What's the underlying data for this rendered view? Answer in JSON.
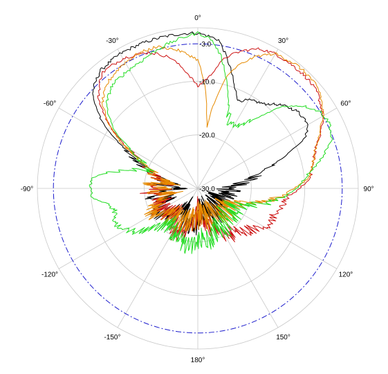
{
  "chart_data": {
    "type": "polar",
    "angle_ticks": [
      {
        "deg": 0,
        "label": "0°"
      },
      {
        "deg": 30,
        "label": "30°"
      },
      {
        "deg": 60,
        "label": "60°"
      },
      {
        "deg": 90,
        "label": "90°"
      },
      {
        "deg": 120,
        "label": "120°"
      },
      {
        "deg": 150,
        "label": "150°"
      },
      {
        "deg": 180,
        "label": "180°"
      },
      {
        "deg": -150,
        "label": "-150°"
      },
      {
        "deg": -120,
        "label": "-120°"
      },
      {
        "deg": -90,
        "label": "-90°"
      },
      {
        "deg": -60,
        "label": "-60°"
      },
      {
        "deg": -30,
        "label": "-30°"
      }
    ],
    "radial_ticks": [
      {
        "value": -3,
        "label": "-3.0"
      },
      {
        "value": -10,
        "label": "-10.0"
      },
      {
        "value": -20,
        "label": "-20.0"
      },
      {
        "value": -30,
        "label": "-30.0"
      }
    ],
    "radial_range": [
      -30,
      0
    ],
    "grid_circles": [
      0,
      -10,
      -20
    ],
    "reference_circle": {
      "value": -3,
      "color": "#1a1acc"
    },
    "series": [
      {
        "color": "#000000",
        "points": [
          [
            -180,
            -24
          ],
          [
            -165,
            -23
          ],
          [
            -150,
            -26
          ],
          [
            -140,
            -24
          ],
          [
            -130,
            -23
          ],
          [
            -120,
            -21
          ],
          [
            -110,
            -24
          ],
          [
            -100,
            -22
          ],
          [
            -95,
            -24
          ],
          [
            -90,
            -27
          ],
          [
            -85,
            -24
          ],
          [
            -80,
            -25
          ],
          [
            -70,
            -20
          ],
          [
            -62,
            -15
          ],
          [
            -55,
            -8
          ],
          [
            -48,
            -3.5
          ],
          [
            -40,
            -1.5
          ],
          [
            -30,
            -1
          ],
          [
            -20,
            -1
          ],
          [
            -10,
            -1
          ],
          [
            0,
            -1
          ],
          [
            8,
            -2
          ],
          [
            14,
            -6
          ],
          [
            20,
            -10
          ],
          [
            25,
            -12
          ],
          [
            30,
            -11
          ],
          [
            38,
            -10
          ],
          [
            45,
            -8
          ],
          [
            52,
            -6.5
          ],
          [
            60,
            -6
          ],
          [
            65,
            -8
          ],
          [
            70,
            -13
          ],
          [
            75,
            -17
          ],
          [
            80,
            -20
          ],
          [
            85,
            -23
          ],
          [
            90,
            -24
          ],
          [
            95,
            -24
          ],
          [
            100,
            -25
          ],
          [
            108,
            -26
          ],
          [
            115,
            -25
          ],
          [
            125,
            -26
          ],
          [
            135,
            -25
          ],
          [
            145,
            -24
          ],
          [
            155,
            -26
          ],
          [
            165,
            -25
          ],
          [
            175,
            -26
          ]
        ]
      },
      {
        "color": "#cc1111",
        "points": [
          [
            -180,
            -26
          ],
          [
            -165,
            -22
          ],
          [
            -150,
            -21
          ],
          [
            -140,
            -25
          ],
          [
            -130,
            -23
          ],
          [
            -120,
            -22
          ],
          [
            -110,
            -23
          ],
          [
            -100,
            -24
          ],
          [
            -95,
            -21
          ],
          [
            -90,
            -24
          ],
          [
            -85,
            -22
          ],
          [
            -80,
            -24
          ],
          [
            -70,
            -20
          ],
          [
            -62,
            -17
          ],
          [
            -55,
            -10
          ],
          [
            -48,
            -5
          ],
          [
            -40,
            -2
          ],
          [
            -30,
            -2
          ],
          [
            -20,
            -3
          ],
          [
            -12,
            -5
          ],
          [
            -6,
            -8
          ],
          [
            0,
            -11
          ],
          [
            6,
            -9
          ],
          [
            12,
            -5
          ],
          [
            18,
            -3
          ],
          [
            24,
            -1.5
          ],
          [
            30,
            -1
          ],
          [
            38,
            -1
          ],
          [
            45,
            -1
          ],
          [
            52,
            -1.5
          ],
          [
            60,
            -3
          ],
          [
            66,
            -5
          ],
          [
            72,
            -7
          ],
          [
            78,
            -8
          ],
          [
            85,
            -9
          ],
          [
            90,
            -11
          ],
          [
            95,
            -13
          ],
          [
            102,
            -14
          ],
          [
            110,
            -15
          ],
          [
            118,
            -15
          ],
          [
            125,
            -17
          ],
          [
            132,
            -18
          ],
          [
            140,
            -20
          ],
          [
            148,
            -19
          ],
          [
            155,
            -22
          ],
          [
            165,
            -23
          ],
          [
            175,
            -25
          ]
        ]
      },
      {
        "color": "#e68a00",
        "points": [
          [
            -180,
            -25
          ],
          [
            -165,
            -24
          ],
          [
            -150,
            -23
          ],
          [
            -140,
            -23
          ],
          [
            -130,
            -23
          ],
          [
            -120,
            -20
          ],
          [
            -110,
            -22
          ],
          [
            -100,
            -25
          ],
          [
            -95,
            -22
          ],
          [
            -90,
            -23
          ],
          [
            -85,
            -21
          ],
          [
            -80,
            -24
          ],
          [
            -70,
            -21
          ],
          [
            -62,
            -16
          ],
          [
            -55,
            -10
          ],
          [
            -48,
            -6
          ],
          [
            -40,
            -4
          ],
          [
            -32,
            -3
          ],
          [
            -24,
            -2.5
          ],
          [
            -16,
            -2.5
          ],
          [
            -8,
            -4
          ],
          [
            0,
            -6
          ],
          [
            4,
            -11
          ],
          [
            8,
            -18
          ],
          [
            11,
            -14
          ],
          [
            14,
            -9
          ],
          [
            18,
            -6
          ],
          [
            24,
            -3
          ],
          [
            30,
            -1
          ],
          [
            38,
            -0.5
          ],
          [
            45,
            -0.5
          ],
          [
            52,
            -1
          ],
          [
            60,
            -3
          ],
          [
            66,
            -5
          ],
          [
            72,
            -7
          ],
          [
            78,
            -8
          ],
          [
            84,
            -9
          ],
          [
            90,
            -12
          ],
          [
            95,
            -14
          ],
          [
            100,
            -17
          ],
          [
            110,
            -22
          ],
          [
            120,
            -24
          ],
          [
            130,
            -23
          ],
          [
            140,
            -24
          ],
          [
            150,
            -26
          ],
          [
            160,
            -24
          ],
          [
            170,
            -25
          ]
        ]
      },
      {
        "color": "#22dd22",
        "points": [
          [
            -180,
            -20
          ],
          [
            -172,
            -19
          ],
          [
            -165,
            -19
          ],
          [
            -158,
            -21
          ],
          [
            -150,
            -21
          ],
          [
            -140,
            -22
          ],
          [
            -132,
            -19
          ],
          [
            -125,
            -16
          ],
          [
            -118,
            -14
          ],
          [
            -112,
            -13
          ],
          [
            -105,
            -14
          ],
          [
            -100,
            -13
          ],
          [
            -95,
            -10
          ],
          [
            -90,
            -10
          ],
          [
            -85,
            -10
          ],
          [
            -80,
            -13
          ],
          [
            -75,
            -17
          ],
          [
            -70,
            -21
          ],
          [
            -62,
            -17
          ],
          [
            -55,
            -11
          ],
          [
            -48,
            -7
          ],
          [
            -40,
            -5
          ],
          [
            -32,
            -4.5
          ],
          [
            -24,
            -4
          ],
          [
            -16,
            -3
          ],
          [
            -8,
            -2
          ],
          [
            0,
            -1
          ],
          [
            5,
            -2
          ],
          [
            10,
            -5
          ],
          [
            16,
            -10
          ],
          [
            22,
            -15
          ],
          [
            28,
            -17
          ],
          [
            34,
            -16
          ],
          [
            40,
            -13
          ],
          [
            46,
            -8
          ],
          [
            52,
            -5
          ],
          [
            58,
            -3
          ],
          [
            64,
            -2.5
          ],
          [
            70,
            -3.5
          ],
          [
            76,
            -6
          ],
          [
            82,
            -9
          ],
          [
            88,
            -11
          ],
          [
            94,
            -13
          ],
          [
            100,
            -16
          ],
          [
            108,
            -20
          ],
          [
            116,
            -23
          ],
          [
            125,
            -22
          ],
          [
            135,
            -23
          ],
          [
            145,
            -21
          ],
          [
            155,
            -22
          ],
          [
            165,
            -20
          ],
          [
            175,
            -21
          ]
        ]
      }
    ]
  }
}
